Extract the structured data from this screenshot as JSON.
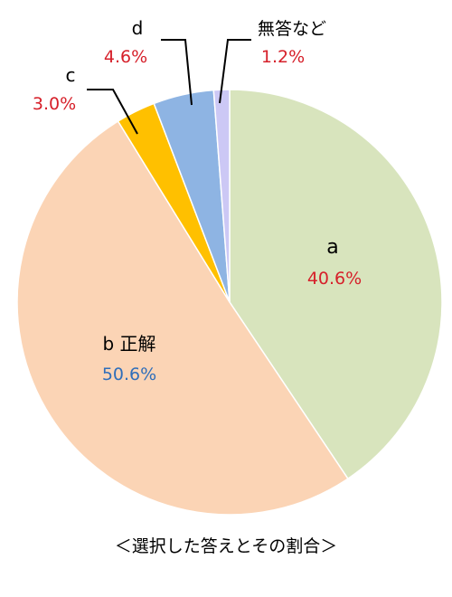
{
  "chart_data": {
    "type": "pie",
    "caption": "＜選択した答えとその割合＞",
    "start_angle_deg": 0,
    "direction": "clockwise",
    "slices": [
      {
        "name": "a",
        "value": 40.6,
        "value_label": "40.6%",
        "color": "#d8e4bd",
        "value_color": "#d6202a"
      },
      {
        "name": "b 正解",
        "value": 50.6,
        "value_label": "50.6%",
        "color": "#fbd4b5",
        "value_color": "#2f6eba"
      },
      {
        "name": "c",
        "value": 3.0,
        "value_label": "3.0%",
        "color": "#ffc000",
        "value_color": "#d6202a"
      },
      {
        "name": "d",
        "value": 4.6,
        "value_label": "4.6%",
        "color": "#8eb4e3",
        "value_color": "#d6202a"
      },
      {
        "name": "無答など",
        "value": 1.2,
        "value_label": "1.2%",
        "color": "#ccc8f5",
        "value_color": "#d6202a"
      }
    ]
  }
}
